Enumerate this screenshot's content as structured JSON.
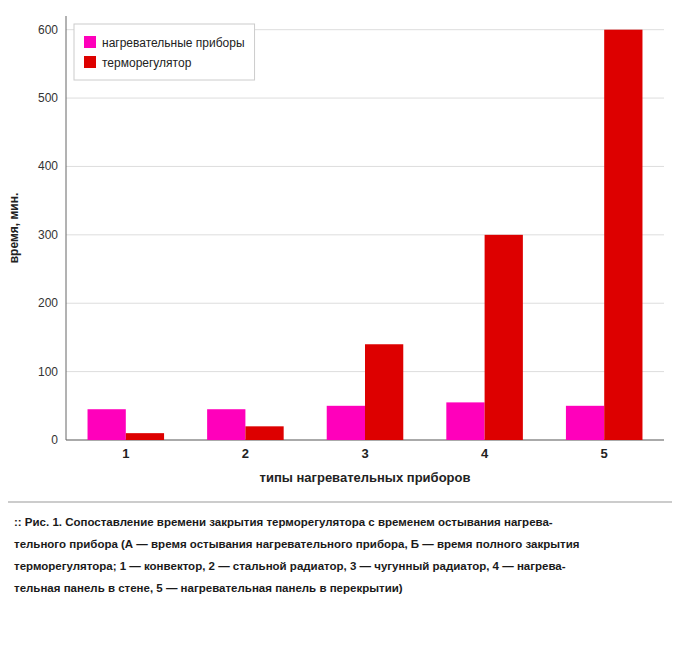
{
  "chart_data": {
    "type": "bar",
    "categories": [
      "1",
      "2",
      "3",
      "4",
      "5"
    ],
    "series": [
      {
        "name": "нагревательные приборы",
        "color": "#FF00BB",
        "values": [
          45,
          45,
          50,
          55,
          50
        ]
      },
      {
        "name": "терморегулятор",
        "color": "#DD0000",
        "values": [
          10,
          20,
          140,
          300,
          600
        ]
      }
    ],
    "ylabel": "время, мин.",
    "xlabel": "типы нагревательных приборов",
    "ylim": [
      0,
      620
    ],
    "yticks": [
      0,
      100,
      200,
      300,
      400,
      500,
      600
    ],
    "grid": true,
    "legend": "top-left",
    "annotations": [
      ":: Рис. 1. Сопоставление времени закрытия терморегулятора с временем остывания нагрева-",
      "тельного прибора (А — время остывания нагревательного прибора, Б — время полного закрытия",
      "терморегулятора; 1 — конвектор, 2 — стальной радиатор, 3 — чугунный радиатор, 4 — нагрева-",
      "тельная панель в стене, 5 — нагревательная панель в перекрытии)"
    ]
  }
}
